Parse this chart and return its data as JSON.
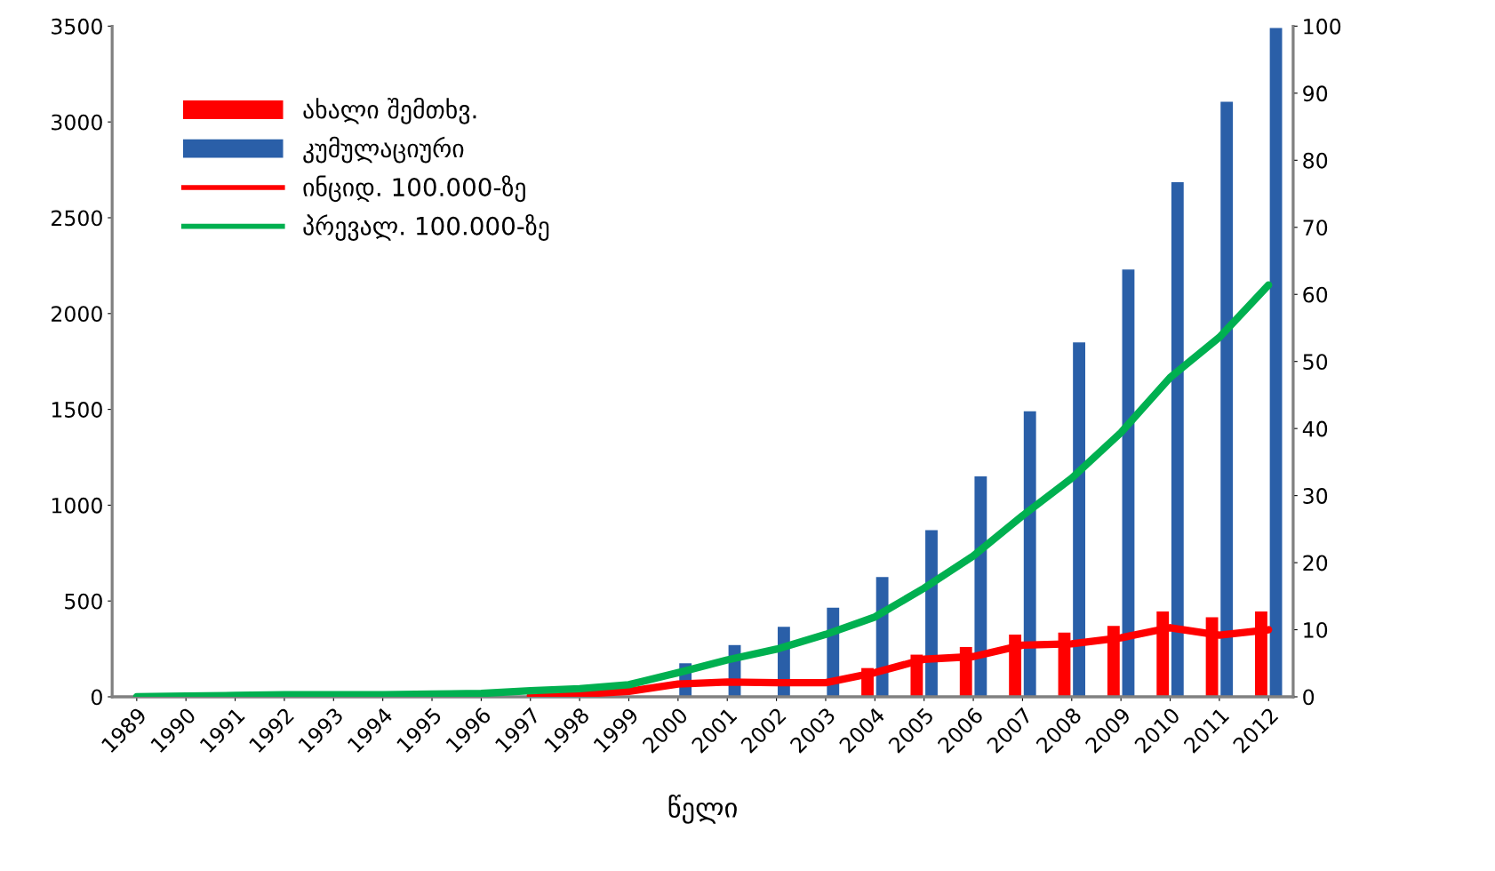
{
  "chart_data": {
    "type": "bar",
    "xlabel": "წელი",
    "categories": [
      "1989",
      "1990",
      "1991",
      "1992",
      "1993",
      "1994",
      "1995",
      "1996",
      "1997",
      "1998",
      "1999",
      "2000",
      "2001",
      "2002",
      "2003",
      "2004",
      "2005",
      "2006",
      "2007",
      "2008",
      "2009",
      "2010",
      "2011",
      "2012"
    ],
    "series": [
      {
        "name": "ახალი შემთხვ.",
        "color": "#ff0000",
        "values": [
          null,
          null,
          null,
          null,
          null,
          null,
          null,
          null,
          null,
          null,
          null,
          null,
          null,
          null,
          null,
          150,
          220,
          260,
          325,
          335,
          370,
          445,
          415,
          445
        ]
      },
      {
        "name": "კუმულაციური",
        "color": "#2a5fa8",
        "values": [
          null,
          null,
          null,
          null,
          null,
          null,
          null,
          null,
          null,
          null,
          null,
          175,
          270,
          365,
          465,
          625,
          870,
          1150,
          1490,
          1850,
          2230,
          2685,
          3105,
          3490
        ]
      },
      {
        "name": "ინციდ. 100.000-ზე",
        "type": "line",
        "axis": "y2",
        "color": "#ff0000",
        "values": [
          null,
          null,
          null,
          null,
          null,
          null,
          null,
          null,
          0.2,
          0.4,
          0.8,
          1.9,
          2.2,
          2.1,
          2.1,
          3.6,
          5.6,
          6.0,
          7.7,
          7.9,
          8.8,
          10.3,
          9.2,
          10.0
        ]
      },
      {
        "name": "პრევალ. 100.000-ზე",
        "type": "line",
        "axis": "y2",
        "color": "#00b050",
        "values": [
          0,
          0.1,
          0.2,
          0.3,
          0.3,
          0.3,
          0.4,
          0.5,
          0.9,
          1.2,
          1.8,
          3.6,
          5.5,
          7.1,
          9.3,
          11.9,
          16.2,
          21.0,
          27.0,
          32.6,
          39.4,
          47.6,
          53.6,
          61.4
        ]
      }
    ],
    "ylim": [
      0,
      3500
    ],
    "yticks": [
      0,
      500,
      1000,
      1500,
      2000,
      2500,
      3000,
      3500
    ],
    "y2lim": [
      0,
      100
    ],
    "y2ticks": [
      0,
      10,
      20,
      30,
      40,
      50,
      60,
      70,
      80,
      90,
      100
    ],
    "grid": false,
    "legend": "top left"
  }
}
